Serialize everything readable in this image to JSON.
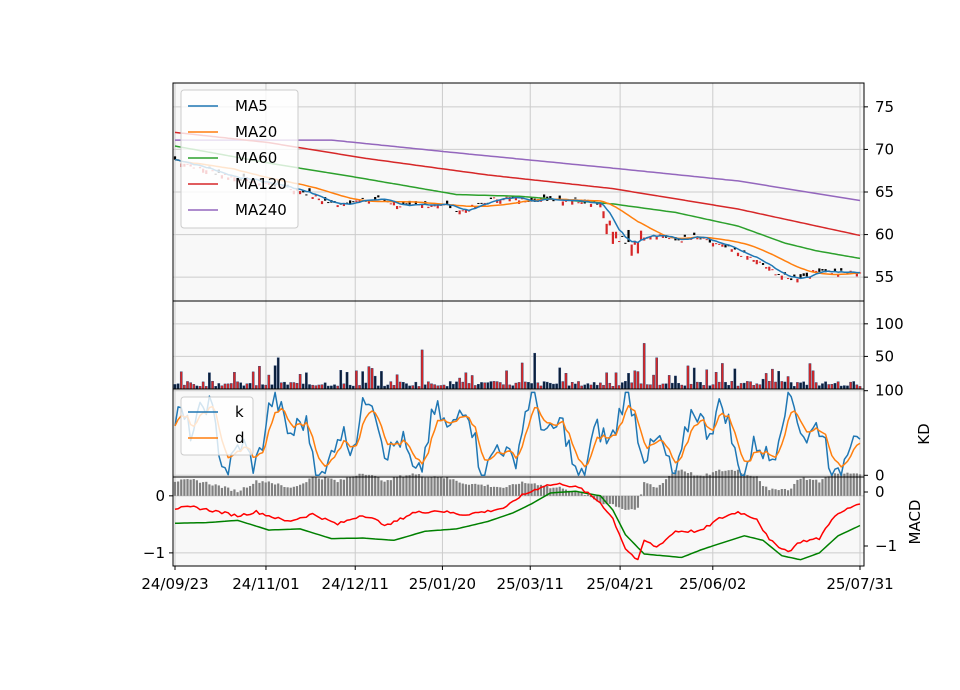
{
  "chart_data": {
    "type": "candlestick",
    "x_tick_labels": [
      "24/09/23",
      "24/11/01",
      "24/12/11",
      "25/01/20",
      "25/03/11",
      "25/04/21",
      "25/06/02",
      "25/07/31"
    ],
    "colors": {
      "up": "#d62728",
      "down": "#000000",
      "grid": "#cccccc",
      "panel_bg": "#f8f8f8",
      "ma5": "#1f77b4",
      "ma20": "#ff7f0e",
      "ma60": "#2ca02c",
      "ma120": "#d62728",
      "ma240": "#9467bd",
      "k": "#1f77b4",
      "d": "#ff7f0e",
      "dif": "#ff0000",
      "dea": "#008000",
      "histogram": "#808080"
    },
    "panels": {
      "price": {
        "y_ticks": [
          "55",
          "60",
          "65",
          "70",
          "75"
        ],
        "ylim": [
          52.2,
          77.8
        ],
        "legend": [
          "MA5",
          "MA20",
          "MA60",
          "MA120",
          "MA240"
        ],
        "legend_position": "upper-left",
        "ma240_points": [
          [
            0,
            71.1
          ],
          [
            50,
            71.1
          ],
          [
            90,
            69.6
          ],
          [
            140,
            67.8
          ],
          [
            180,
            66.3
          ],
          [
            219,
            64.0
          ]
        ],
        "ma120_points": [
          [
            0,
            72.0
          ],
          [
            30,
            70.8
          ],
          [
            60,
            69.0
          ],
          [
            100,
            67.0
          ],
          [
            140,
            65.4
          ],
          [
            180,
            63.0
          ],
          [
            219,
            59.9
          ]
        ],
        "ma60_points": [
          [
            0,
            70.4
          ],
          [
            30,
            68.4
          ],
          [
            60,
            66.6
          ],
          [
            90,
            64.7
          ],
          [
            110,
            64.5
          ],
          [
            140,
            63.6
          ],
          [
            160,
            62.6
          ],
          [
            180,
            61.0
          ],
          [
            195,
            59.0
          ],
          [
            205,
            58.1
          ],
          [
            219,
            57.2
          ]
        ]
      },
      "volume": {
        "y_ticks": [
          "50",
          "100"
        ],
        "ylim": [
          0,
          135
        ]
      },
      "kd": {
        "y_ticks": [
          "0",
          "100"
        ],
        "ylabel": "KD",
        "ylim": [
          -2,
          102
        ],
        "legend": [
          "k",
          "d"
        ],
        "legend_position": "upper-left"
      },
      "macd": {
        "y_ticks_left": [
          "0",
          "−1"
        ],
        "y_ticks_right": [
          "0",
          "−1"
        ],
        "ylabel": "MACD",
        "ylim": [
          -1.23,
          0.33
        ]
      }
    },
    "n_days": 220,
    "grid": true
  }
}
